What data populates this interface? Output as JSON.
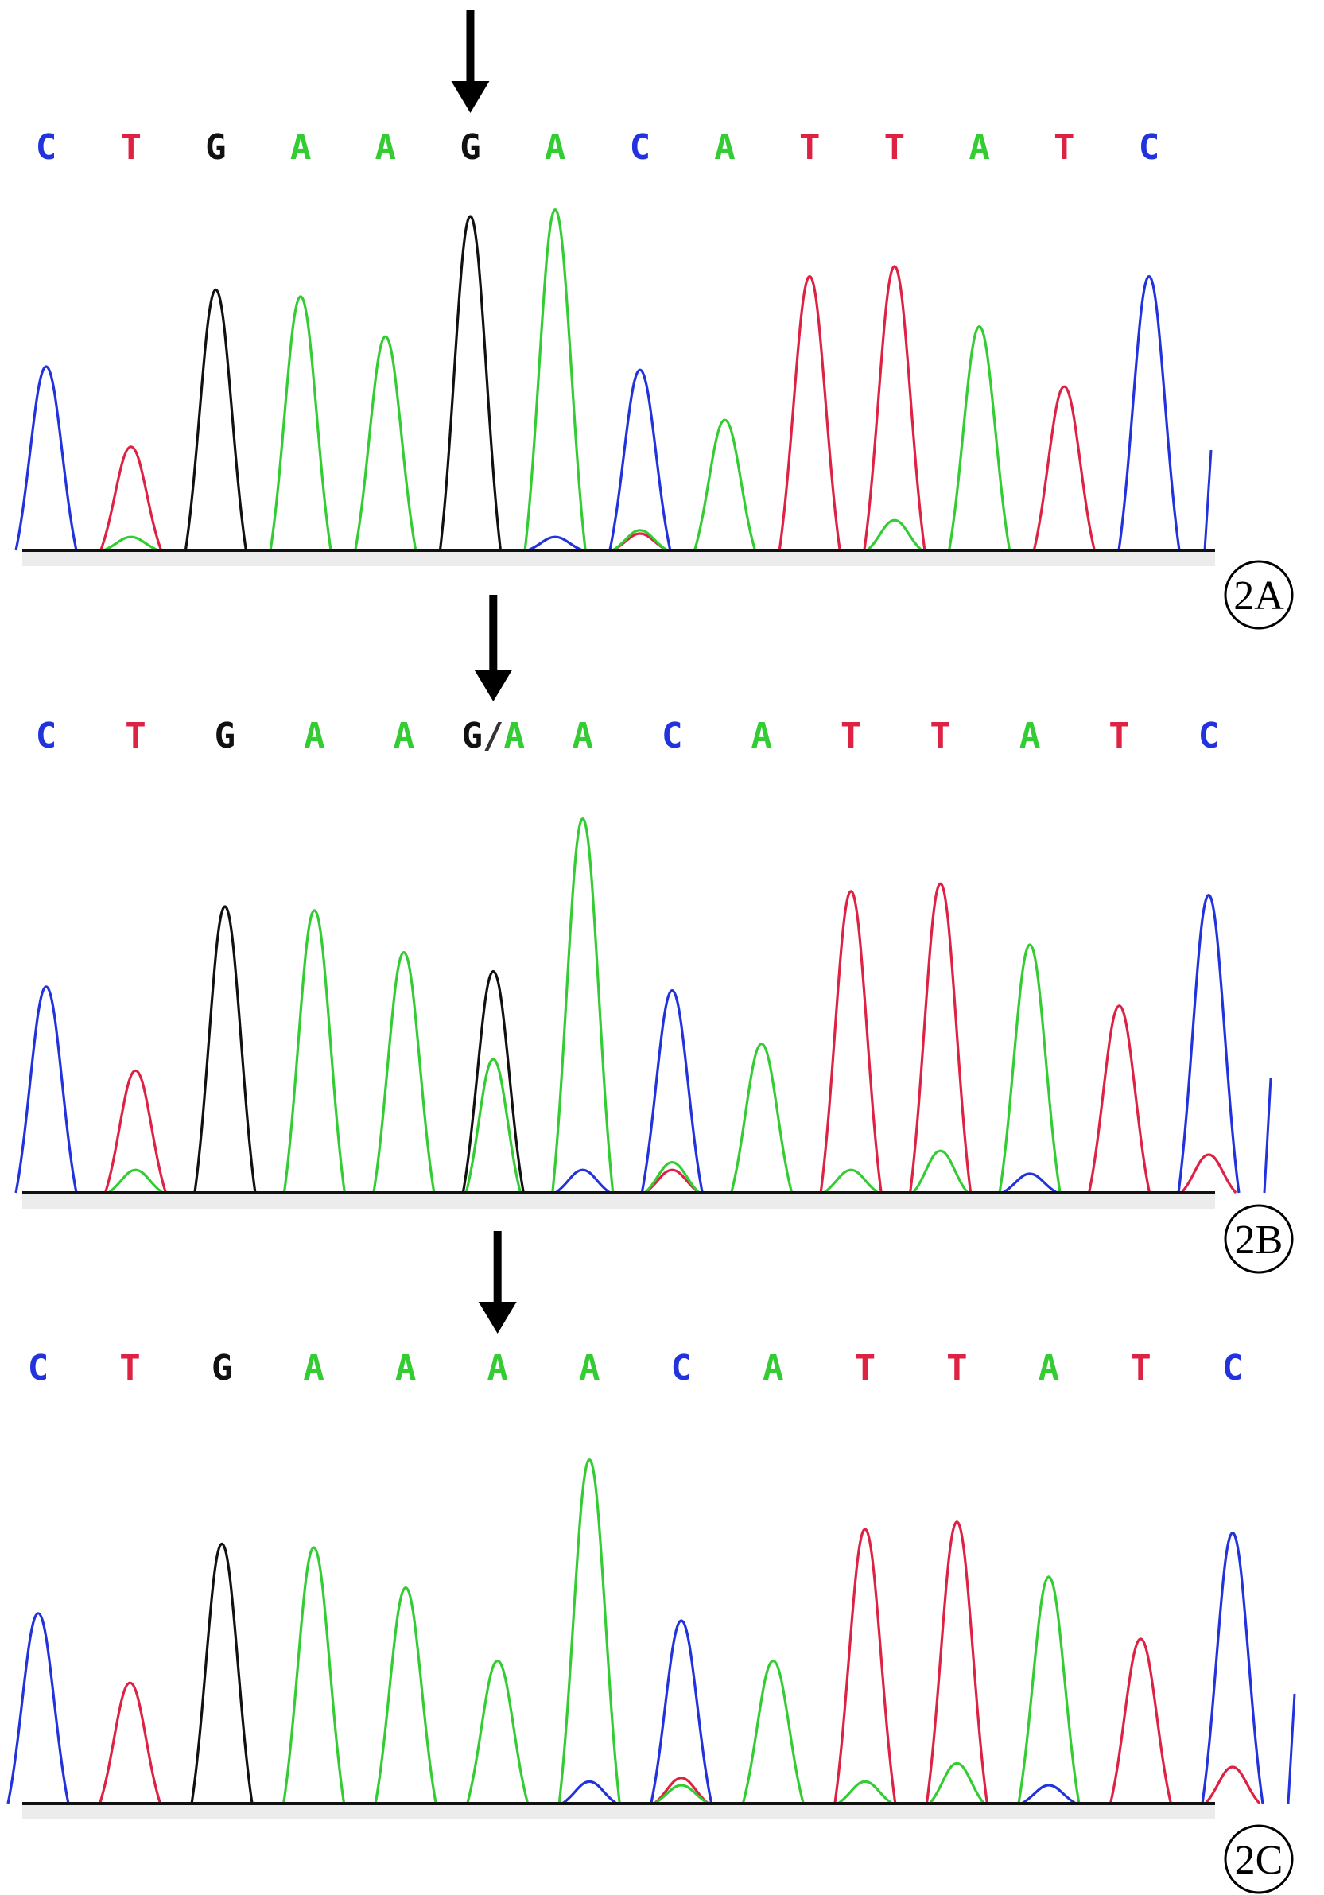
{
  "colors": {
    "A": "#33cc33",
    "C": "#2233dd",
    "G": "#111111",
    "T": "#dd2244",
    "baseline": "#111111",
    "arrow": "#000000"
  },
  "panels": [
    {
      "label": "2A",
      "bases": [
        "C",
        "T",
        "G",
        "A",
        "A",
        "G",
        "A",
        "C",
        "A",
        "T",
        "T",
        "A",
        "T",
        "C"
      ],
      "arrow_index": 5,
      "peaks": [
        {
          "base": "C",
          "height": 0.55
        },
        {
          "base": "T",
          "height": 0.31
        },
        {
          "base": "G",
          "height": 0.78
        },
        {
          "base": "A",
          "height": 0.76
        },
        {
          "base": "A",
          "height": 0.64
        },
        {
          "base": "G",
          "height": 1.0
        },
        {
          "base": "A",
          "height": 1.02
        },
        {
          "base": "C",
          "height": 0.54
        },
        {
          "base": "A",
          "height": 0.39
        },
        {
          "base": "T",
          "height": 0.82
        },
        {
          "base": "T",
          "height": 0.85
        },
        {
          "base": "A",
          "height": 0.67
        },
        {
          "base": "T",
          "height": 0.49
        },
        {
          "base": "C",
          "height": 0.82
        }
      ],
      "minor_peaks": [
        {
          "base": "A",
          "at": 1,
          "height": 0.04
        },
        {
          "base": "C",
          "at": 6,
          "height": 0.04
        },
        {
          "base": "T",
          "at": 7,
          "height": 0.05
        },
        {
          "base": "A",
          "at": 7,
          "height": 0.06
        },
        {
          "base": "A",
          "at": 10,
          "height": 0.09
        }
      ]
    },
    {
      "label": "2B",
      "bases": [
        "C",
        "T",
        "G",
        "A",
        "A",
        "G/A",
        "A",
        "C",
        "A",
        "T",
        "T",
        "A",
        "T",
        "C"
      ],
      "arrow_index": 5,
      "peaks": [
        {
          "base": "C",
          "height": 0.54
        },
        {
          "base": "T",
          "height": 0.32
        },
        {
          "base": "G",
          "height": 0.75
        },
        {
          "base": "A",
          "height": 0.74
        },
        {
          "base": "A",
          "height": 0.63
        },
        {
          "base": "G",
          "height": 0.58
        },
        {
          "base": "A",
          "height": 0.98
        },
        {
          "base": "C",
          "height": 0.53
        },
        {
          "base": "A",
          "height": 0.39
        },
        {
          "base": "T",
          "height": 0.79
        },
        {
          "base": "T",
          "height": 0.81
        },
        {
          "base": "A",
          "height": 0.65
        },
        {
          "base": "T",
          "height": 0.49
        },
        {
          "base": "C",
          "height": 0.78
        }
      ],
      "minor_peaks": [
        {
          "base": "A",
          "at": 1,
          "height": 0.06
        },
        {
          "base": "A",
          "at": 5,
          "height": 0.35
        },
        {
          "base": "C",
          "at": 6,
          "height": 0.06
        },
        {
          "base": "T",
          "at": 7,
          "height": 0.06
        },
        {
          "base": "A",
          "at": 7,
          "height": 0.08
        },
        {
          "base": "A",
          "at": 9,
          "height": 0.06
        },
        {
          "base": "A",
          "at": 10,
          "height": 0.11
        },
        {
          "base": "C",
          "at": 11,
          "height": 0.05
        },
        {
          "base": "T",
          "at": 13,
          "height": 0.1
        }
      ]
    },
    {
      "label": "2C",
      "bases": [
        "C",
        "T",
        "G",
        "A",
        "A",
        "A",
        "A",
        "C",
        "A",
        "T",
        "T",
        "A",
        "T",
        "C"
      ],
      "arrow_index": 5,
      "peaks": [
        {
          "base": "C",
          "height": 0.52
        },
        {
          "base": "T",
          "height": 0.33
        },
        {
          "base": "G",
          "height": 0.71
        },
        {
          "base": "A",
          "height": 0.7
        },
        {
          "base": "A",
          "height": 0.59
        },
        {
          "base": "A",
          "height": 0.39
        },
        {
          "base": "A",
          "height": 0.94
        },
        {
          "base": "C",
          "height": 0.5
        },
        {
          "base": "A",
          "height": 0.39
        },
        {
          "base": "T",
          "height": 0.75
        },
        {
          "base": "T",
          "height": 0.77
        },
        {
          "base": "A",
          "height": 0.62
        },
        {
          "base": "T",
          "height": 0.45
        },
        {
          "base": "C",
          "height": 0.74
        }
      ],
      "minor_peaks": [
        {
          "base": "C",
          "at": 6,
          "height": 0.06
        },
        {
          "base": "T",
          "at": 7,
          "height": 0.07
        },
        {
          "base": "A",
          "at": 7,
          "height": 0.05
        },
        {
          "base": "A",
          "at": 9,
          "height": 0.06
        },
        {
          "base": "A",
          "at": 10,
          "height": 0.11
        },
        {
          "base": "C",
          "at": 11,
          "height": 0.05
        },
        {
          "base": "T",
          "at": 13,
          "height": 0.1
        }
      ]
    }
  ]
}
